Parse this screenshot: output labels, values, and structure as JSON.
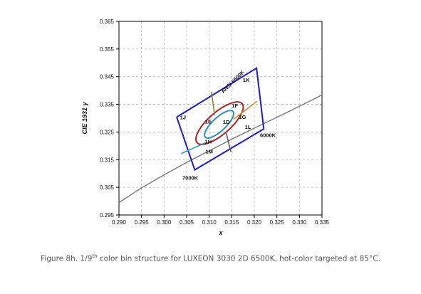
{
  "chart_data": {
    "type": "scatter",
    "xlabel": "x",
    "ylabel": "CIE 1931 y",
    "xlim": [
      0.29,
      0.335
    ],
    "ylim": [
      0.295,
      0.365
    ],
    "grid": true,
    "x_ticks": [
      "0.290",
      "0.295",
      "0.300",
      "0.305",
      "0.310",
      "0.315",
      "0.320",
      "0.325",
      "0.330",
      "0.335"
    ],
    "y_ticks": [
      "0.295",
      "0.305",
      "0.315",
      "0.325",
      "0.335",
      "0.345",
      "0.355",
      "0.365"
    ],
    "series": [
      {
        "name": "",
        "kind": "blackbody-locus",
        "color": "#777777",
        "points": [
          [
            0.29,
            0.2995
          ],
          [
            0.295,
            0.3048
          ],
          [
            0.3,
            0.3095
          ],
          [
            0.305,
            0.314
          ],
          [
            0.31,
            0.3182
          ],
          [
            0.315,
            0.3224
          ],
          [
            0.32,
            0.3264
          ],
          [
            0.325,
            0.3303
          ],
          [
            0.33,
            0.3343
          ],
          [
            0.335,
            0.3384
          ]
        ]
      },
      {
        "name": "ANSI 6500K",
        "kind": "quadrangle",
        "color": "#1a1adb",
        "points": [
          [
            0.3028,
            0.3304
          ],
          [
            0.3205,
            0.3481
          ],
          [
            0.3221,
            0.3261
          ],
          [
            0.3068,
            0.3113
          ],
          [
            0.3028,
            0.3304
          ]
        ]
      },
      {
        "name": "",
        "kind": "ellipse",
        "color": "#b22222",
        "center": [
          0.3123,
          0.3282
        ],
        "rx": 0.0066,
        "ry": 0.004,
        "rotation_deg": 41
      },
      {
        "name": "",
        "kind": "ellipse",
        "color": "#2f8fc0",
        "center": [
          0.3122,
          0.3278
        ],
        "rx": 0.0042,
        "ry": 0.0024,
        "rotation_deg": 43
      },
      {
        "name": "",
        "kind": "bin-divider",
        "color": "#8a8a2a",
        "points": [
          [
            0.3105,
            0.3395
          ],
          [
            0.3112,
            0.3312
          ]
        ]
      },
      {
        "name": "",
        "kind": "bin-divider",
        "color": "#d98a2a",
        "points": [
          [
            0.3154,
            0.3296
          ],
          [
            0.3206,
            0.3361
          ]
        ]
      },
      {
        "name": "",
        "kind": "bin-divider",
        "color": "#2fa0b0",
        "points": [
          [
            0.3038,
            0.3172
          ],
          [
            0.3094,
            0.3213
          ]
        ]
      },
      {
        "name": "",
        "kind": "bin-divider",
        "color": "#7a4a6a",
        "points": [
          [
            0.3138,
            0.3245
          ],
          [
            0.3148,
            0.3178
          ]
        ]
      }
    ],
    "annotations": [
      {
        "text": "ANSI 6500K",
        "at": [
          0.3155,
          0.3427
        ],
        "rotate": -44
      },
      {
        "text": "1K",
        "at": [
          0.3182,
          0.3431
        ]
      },
      {
        "text": "1F",
        "at": [
          0.3157,
          0.3338
        ]
      },
      {
        "text": "1J",
        "at": [
          0.3042,
          0.3296
        ]
      },
      {
        "text": "1E",
        "at": [
          0.3098,
          0.3281
        ]
      },
      {
        "text": "1D",
        "at": [
          0.3138,
          0.328
        ]
      },
      {
        "text": "1G",
        "at": [
          0.3174,
          0.3297
        ]
      },
      {
        "text": "1L",
        "at": [
          0.3186,
          0.3262
        ]
      },
      {
        "text": "6000K",
        "at": [
          0.323,
          0.3232
        ]
      },
      {
        "text": "1H",
        "at": [
          0.3098,
          0.3208
        ]
      },
      {
        "text": "1M",
        "at": [
          0.31,
          0.3172
        ]
      },
      {
        "text": "7000K",
        "at": [
          0.3058,
          0.3077
        ]
      }
    ]
  },
  "caption": {
    "before": "Figure 8h. 1/9",
    "sup": "th",
    "after": " color bin structure for LUXEON 3030 2D 6500K, hot-color targeted at 85°C."
  }
}
